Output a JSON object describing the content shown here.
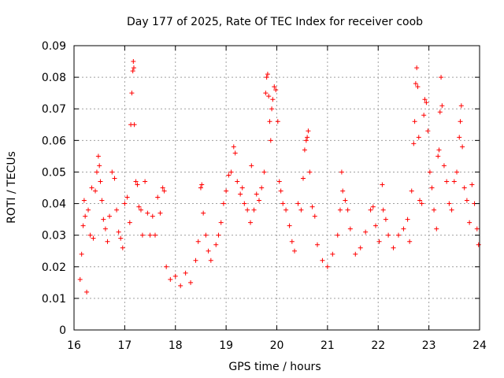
{
  "chart_data": {
    "type": "scatter",
    "title": "Day 177 of 2025, Rate Of TEC Index for receiver coob",
    "xlabel": "GPS time / hours",
    "ylabel": "ROTI / TECUs",
    "xlim": [
      16,
      24
    ],
    "ylim": [
      0,
      0.09
    ],
    "xticks": [
      16,
      17,
      18,
      19,
      20,
      21,
      22,
      23,
      24
    ],
    "yticks": [
      0,
      0.01,
      0.02,
      0.03,
      0.04,
      0.05,
      0.06,
      0.07,
      0.08,
      0.09
    ],
    "xtick_labels": [
      "16",
      "17",
      "18",
      "19",
      "20",
      "21",
      "22",
      "23",
      "24"
    ],
    "ytick_labels": [
      "0",
      "0.01",
      "0.02",
      "0.03",
      "0.04",
      "0.05",
      "0.06",
      "0.07",
      "0.08",
      "0.09"
    ],
    "grid": true,
    "marker": "+",
    "series": [
      {
        "name": "ROTI",
        "color": "#ff0000",
        "points": [
          [
            16.12,
            0.016
          ],
          [
            16.15,
            0.024
          ],
          [
            16.18,
            0.033
          ],
          [
            16.2,
            0.041
          ],
          [
            16.22,
            0.036
          ],
          [
            16.25,
            0.012
          ],
          [
            16.28,
            0.038
          ],
          [
            16.32,
            0.03
          ],
          [
            16.35,
            0.045
          ],
          [
            16.38,
            0.029
          ],
          [
            16.42,
            0.044
          ],
          [
            16.45,
            0.05
          ],
          [
            16.48,
            0.055
          ],
          [
            16.5,
            0.052
          ],
          [
            16.52,
            0.047
          ],
          [
            16.55,
            0.041
          ],
          [
            16.58,
            0.035
          ],
          [
            16.62,
            0.032
          ],
          [
            16.66,
            0.028
          ],
          [
            16.7,
            0.036
          ],
          [
            16.75,
            0.05
          ],
          [
            16.8,
            0.048
          ],
          [
            16.84,
            0.038
          ],
          [
            16.88,
            0.031
          ],
          [
            16.92,
            0.029
          ],
          [
            16.96,
            0.026
          ],
          [
            17.0,
            0.04
          ],
          [
            17.05,
            0.042
          ],
          [
            17.1,
            0.034
          ],
          [
            17.12,
            0.065
          ],
          [
            17.14,
            0.075
          ],
          [
            17.16,
            0.082
          ],
          [
            17.17,
            0.085
          ],
          [
            17.18,
            0.083
          ],
          [
            17.19,
            0.065
          ],
          [
            17.22,
            0.047
          ],
          [
            17.25,
            0.046
          ],
          [
            17.28,
            0.039
          ],
          [
            17.32,
            0.038
          ],
          [
            17.35,
            0.03
          ],
          [
            17.4,
            0.047
          ],
          [
            17.45,
            0.037
          ],
          [
            17.5,
            0.03
          ],
          [
            17.55,
            0.036
          ],
          [
            17.6,
            0.03
          ],
          [
            17.65,
            0.042
          ],
          [
            17.7,
            0.037
          ],
          [
            17.75,
            0.045
          ],
          [
            17.78,
            0.044
          ],
          [
            17.82,
            0.02
          ],
          [
            17.9,
            0.016
          ],
          [
            18.0,
            0.017
          ],
          [
            18.1,
            0.014
          ],
          [
            18.2,
            0.018
          ],
          [
            18.3,
            0.015
          ],
          [
            18.4,
            0.022
          ],
          [
            18.45,
            0.028
          ],
          [
            18.5,
            0.045
          ],
          [
            18.52,
            0.046
          ],
          [
            18.55,
            0.037
          ],
          [
            18.6,
            0.03
          ],
          [
            18.65,
            0.025
          ],
          [
            18.7,
            0.022
          ],
          [
            18.8,
            0.027
          ],
          [
            18.85,
            0.03
          ],
          [
            18.9,
            0.034
          ],
          [
            18.95,
            0.04
          ],
          [
            19.0,
            0.044
          ],
          [
            19.05,
            0.049
          ],
          [
            19.1,
            0.05
          ],
          [
            19.15,
            0.058
          ],
          [
            19.18,
            0.056
          ],
          [
            19.22,
            0.047
          ],
          [
            19.28,
            0.043
          ],
          [
            19.32,
            0.045
          ],
          [
            19.36,
            0.04
          ],
          [
            19.42,
            0.038
          ],
          [
            19.48,
            0.034
          ],
          [
            19.5,
            0.052
          ],
          [
            19.55,
            0.038
          ],
          [
            19.6,
            0.043
          ],
          [
            19.65,
            0.041
          ],
          [
            19.7,
            0.045
          ],
          [
            19.75,
            0.05
          ],
          [
            19.78,
            0.075
          ],
          [
            19.8,
            0.08
          ],
          [
            19.82,
            0.081
          ],
          [
            19.84,
            0.074
          ],
          [
            19.86,
            0.066
          ],
          [
            19.88,
            0.06
          ],
          [
            19.9,
            0.07
          ],
          [
            19.92,
            0.073
          ],
          [
            19.95,
            0.077
          ],
          [
            19.98,
            0.076
          ],
          [
            20.02,
            0.066
          ],
          [
            20.05,
            0.047
          ],
          [
            20.08,
            0.044
          ],
          [
            20.12,
            0.04
          ],
          [
            20.18,
            0.038
          ],
          [
            20.25,
            0.033
          ],
          [
            20.3,
            0.028
          ],
          [
            20.35,
            0.025
          ],
          [
            20.42,
            0.04
          ],
          [
            20.48,
            0.038
          ],
          [
            20.52,
            0.048
          ],
          [
            20.55,
            0.057
          ],
          [
            20.58,
            0.06
          ],
          [
            20.6,
            0.061
          ],
          [
            20.62,
            0.063
          ],
          [
            20.65,
            0.05
          ],
          [
            20.7,
            0.039
          ],
          [
            20.75,
            0.036
          ],
          [
            20.8,
            0.027
          ],
          [
            20.9,
            0.022
          ],
          [
            21.0,
            0.02
          ],
          [
            21.1,
            0.024
          ],
          [
            21.2,
            0.03
          ],
          [
            21.25,
            0.038
          ],
          [
            21.28,
            0.05
          ],
          [
            21.3,
            0.044
          ],
          [
            21.35,
            0.041
          ],
          [
            21.4,
            0.038
          ],
          [
            21.45,
            0.032
          ],
          [
            21.55,
            0.024
          ],
          [
            21.65,
            0.026
          ],
          [
            21.75,
            0.031
          ],
          [
            21.85,
            0.038
          ],
          [
            21.9,
            0.039
          ],
          [
            21.95,
            0.033
          ],
          [
            22.02,
            0.028
          ],
          [
            22.08,
            0.046
          ],
          [
            22.1,
            0.038
          ],
          [
            22.15,
            0.035
          ],
          [
            22.2,
            0.03
          ],
          [
            22.3,
            0.026
          ],
          [
            22.4,
            0.03
          ],
          [
            22.5,
            0.032
          ],
          [
            22.58,
            0.035
          ],
          [
            22.62,
            0.028
          ],
          [
            22.66,
            0.044
          ],
          [
            22.7,
            0.059
          ],
          [
            22.72,
            0.066
          ],
          [
            22.74,
            0.078
          ],
          [
            22.76,
            0.083
          ],
          [
            22.78,
            0.077
          ],
          [
            22.8,
            0.061
          ],
          [
            22.82,
            0.041
          ],
          [
            22.86,
            0.04
          ],
          [
            22.9,
            0.068
          ],
          [
            22.92,
            0.073
          ],
          [
            22.95,
            0.072
          ],
          [
            22.98,
            0.063
          ],
          [
            23.02,
            0.05
          ],
          [
            23.06,
            0.045
          ],
          [
            23.1,
            0.038
          ],
          [
            23.15,
            0.032
          ],
          [
            23.18,
            0.055
          ],
          [
            23.2,
            0.057
          ],
          [
            23.22,
            0.069
          ],
          [
            23.24,
            0.08
          ],
          [
            23.26,
            0.071
          ],
          [
            23.3,
            0.052
          ],
          [
            23.35,
            0.047
          ],
          [
            23.4,
            0.04
          ],
          [
            23.45,
            0.038
          ],
          [
            23.5,
            0.047
          ],
          [
            23.55,
            0.05
          ],
          [
            23.6,
            0.061
          ],
          [
            23.62,
            0.066
          ],
          [
            23.64,
            0.071
          ],
          [
            23.66,
            0.058
          ],
          [
            23.7,
            0.045
          ],
          [
            23.75,
            0.041
          ],
          [
            23.8,
            0.034
          ],
          [
            23.85,
            0.046
          ],
          [
            23.9,
            0.04
          ],
          [
            23.95,
            0.032
          ],
          [
            23.98,
            0.027
          ]
        ]
      }
    ]
  }
}
